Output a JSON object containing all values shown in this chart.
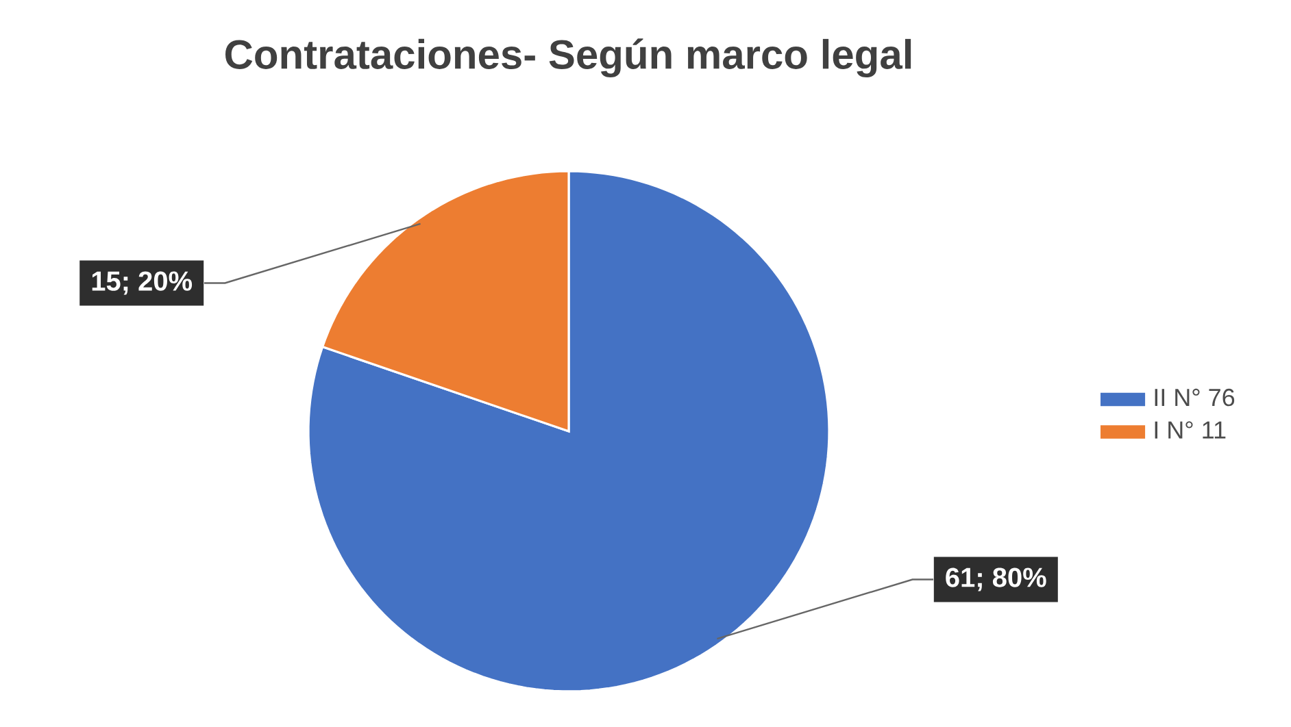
{
  "chart_data": {
    "type": "pie",
    "title": "Contrataciones- Según marco legal",
    "categories": [
      "II N° 76",
      "I N° 11"
    ],
    "values": [
      61,
      15
    ],
    "colors": [
      "#4472c4",
      "#ed7d31"
    ],
    "value_labels": [
      "61; 80%",
      "15; 20%"
    ],
    "legend": "right"
  }
}
